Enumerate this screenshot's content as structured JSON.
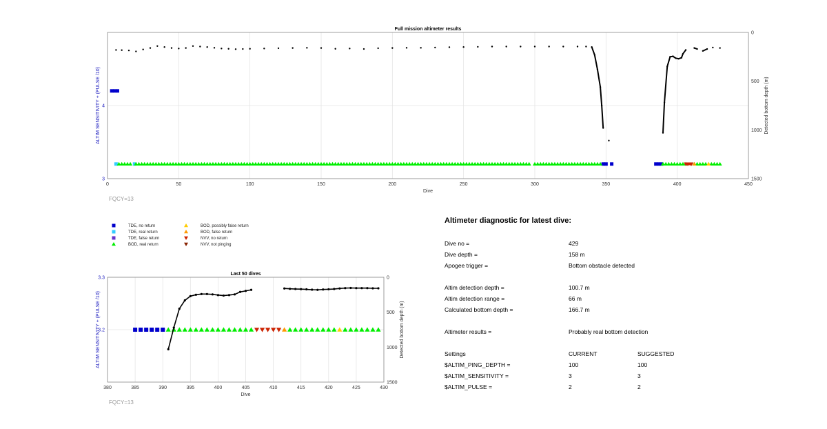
{
  "chart_data": [
    {
      "type": "scatter",
      "title": "Full mission altimeter results",
      "xlabel": "Dive",
      "ylabel_left": "ALTIM SENSITIVITY + (PULSE /10)",
      "ylabel_right": "Detected bottom depth (m)",
      "xlim": [
        0,
        450
      ],
      "ylim_left": [
        3,
        5
      ],
      "ylim_right": [
        0,
        1500
      ],
      "right_axis_reversed": true,
      "xticks": [
        0,
        50,
        100,
        150,
        200,
        250,
        300,
        350,
        400,
        450
      ],
      "yticks_left": [
        3,
        4
      ],
      "yticks_right": [
        0,
        500,
        1000,
        1500
      ],
      "grid": true,
      "footnote": "FQCY=13",
      "depth_series": {
        "name": "Detected bottom depth",
        "color": "#000000",
        "points": [
          [
            6,
            180
          ],
          [
            10,
            182
          ],
          [
            15,
            185
          ],
          [
            20,
            195
          ],
          [
            25,
            175
          ],
          [
            30,
            160
          ],
          [
            35,
            140
          ],
          [
            40,
            150
          ],
          [
            45,
            160
          ],
          [
            50,
            165
          ],
          [
            55,
            160
          ],
          [
            60,
            140
          ],
          [
            65,
            145
          ],
          [
            70,
            150
          ],
          [
            75,
            158
          ],
          [
            80,
            165
          ],
          [
            85,
            168
          ],
          [
            90,
            172
          ],
          [
            95,
            170
          ],
          [
            100,
            168
          ],
          [
            110,
            165
          ],
          [
            120,
            162
          ],
          [
            130,
            160
          ],
          [
            140,
            158
          ],
          [
            150,
            160
          ],
          [
            160,
            168
          ],
          [
            170,
            165
          ],
          [
            180,
            170
          ],
          [
            190,
            162
          ],
          [
            200,
            160
          ],
          [
            210,
            158
          ],
          [
            220,
            158
          ],
          [
            230,
            155
          ],
          [
            240,
            152
          ],
          [
            250,
            150
          ],
          [
            260,
            148
          ],
          [
            270,
            145
          ],
          [
            280,
            145
          ],
          [
            290,
            145
          ],
          [
            300,
            145
          ],
          [
            310,
            145
          ],
          [
            320,
            145
          ],
          [
            330,
            145
          ],
          [
            336,
            145
          ],
          [
            340,
            150
          ],
          [
            342,
            230
          ],
          [
            344,
            380
          ],
          [
            346,
            560
          ],
          [
            347,
            750
          ],
          [
            348,
            980
          ],
          [
            352,
            1110
          ],
          [
            390,
            1030
          ],
          [
            391,
            720
          ],
          [
            393,
            350
          ],
          [
            395,
            250
          ],
          [
            397,
            245
          ],
          [
            399,
            265
          ],
          [
            401,
            270
          ],
          [
            403,
            260
          ],
          [
            404,
            220
          ],
          [
            406,
            180
          ],
          [
            412,
            160
          ],
          [
            414,
            170
          ],
          [
            418,
            190
          ],
          [
            421,
            170
          ],
          [
            425,
            155
          ],
          [
            430,
            160
          ]
        ]
      },
      "marker_series": [
        {
          "name": "TDE, no return",
          "marker": "square",
          "color": "#0000cc",
          "points": [
            [
              3,
              4.2
            ],
            [
              5,
              4.2
            ],
            [
              7,
              4.2
            ],
            [
              348,
              3.2
            ],
            [
              350,
              3.2
            ],
            [
              354,
              3.2
            ],
            [
              385,
              3.2
            ],
            [
              387,
              3.2
            ],
            [
              389,
              3.2
            ]
          ]
        },
        {
          "name": "TDE, real return",
          "marker": "square",
          "color": "#33ccff",
          "points": [
            [
              6,
              3.2
            ],
            [
              19,
              3.2
            ]
          ]
        },
        {
          "name": "BOD, real return",
          "marker": "triangle-up",
          "color": "#00ee00",
          "range": [
            8,
            346
          ],
          "gaps": [
            [
              17,
              20
            ],
            [
              296,
              299
            ]
          ]
        },
        {
          "name": "BOD, real return (late)",
          "marker": "triangle-up",
          "color": "#00ee00",
          "range": [
            390,
            430
          ],
          "gaps": [
            [
              406,
              411
            ]
          ]
        },
        {
          "name": "NVV, no return",
          "marker": "triangle-down",
          "color": "#cc2200",
          "points": [
            [
              406,
              3.2
            ],
            [
              407,
              3.2
            ],
            [
              408,
              3.2
            ],
            [
              409,
              3.2
            ],
            [
              410,
              3.2
            ]
          ]
        },
        {
          "name": "BOD, possibly false return",
          "marker": "triangle-up",
          "color": "#ffcc00",
          "points": [
            [
              422,
              3.2
            ]
          ]
        },
        {
          "name": "BOD, false return",
          "marker": "triangle-up",
          "color": "#ff9900",
          "points": [
            [
              412,
              3.2
            ]
          ]
        }
      ]
    },
    {
      "type": "scatter",
      "title": "Last 50 dives",
      "xlabel": "Dive",
      "ylabel_left": "ALTIM SENSITIVITY + (PULSE /10)",
      "ylabel_right": "Detected bottom depth (m)",
      "xlim": [
        380,
        430
      ],
      "ylim_left": [
        3.1,
        3.3
      ],
      "ylim_right": [
        0,
        1500
      ],
      "right_axis_reversed": true,
      "xticks": [
        380,
        385,
        390,
        395,
        400,
        405,
        410,
        415,
        420,
        425,
        430
      ],
      "yticks_left": [
        3.2,
        3.3
      ],
      "yticks_right": [
        0,
        500,
        1000,
        1500
      ],
      "grid": true,
      "footnote": "FQCY=13",
      "depth_series": {
        "name": "Detected bottom depth",
        "color": "#000000",
        "points": [
          [
            391,
            1030
          ],
          [
            392,
            720
          ],
          [
            393,
            450
          ],
          [
            394,
            330
          ],
          [
            395,
            270
          ],
          [
            396,
            250
          ],
          [
            397,
            240
          ],
          [
            398,
            240
          ],
          [
            399,
            245
          ],
          [
            400,
            255
          ],
          [
            401,
            262
          ],
          [
            402,
            255
          ],
          [
            403,
            245
          ],
          [
            404,
            210
          ],
          [
            405,
            195
          ],
          [
            406,
            180
          ],
          [
            412,
            160
          ],
          [
            413,
            165
          ],
          [
            414,
            168
          ],
          [
            415,
            170
          ],
          [
            416,
            173
          ],
          [
            417,
            178
          ],
          [
            418,
            180
          ],
          [
            419,
            175
          ],
          [
            420,
            172
          ],
          [
            421,
            168
          ],
          [
            422,
            160
          ],
          [
            423,
            155
          ],
          [
            424,
            153
          ],
          [
            425,
            155
          ],
          [
            426,
            155
          ],
          [
            427,
            155
          ],
          [
            428,
            158
          ],
          [
            429,
            158
          ]
        ]
      },
      "marker_series": [
        {
          "name": "TDE, no return",
          "marker": "square",
          "color": "#0000cc",
          "points": [
            [
              385,
              3.2
            ],
            [
              386,
              3.2
            ],
            [
              387,
              3.2
            ],
            [
              388,
              3.2
            ],
            [
              389,
              3.2
            ],
            [
              390,
              3.2
            ]
          ]
        },
        {
          "name": "BOD, real return",
          "marker": "triangle-up",
          "color": "#00ee00",
          "points": [
            [
              391,
              3.2
            ],
            [
              392,
              3.2
            ],
            [
              393,
              3.2
            ],
            [
              394,
              3.2
            ],
            [
              395,
              3.2
            ],
            [
              396,
              3.2
            ],
            [
              397,
              3.2
            ],
            [
              398,
              3.2
            ],
            [
              399,
              3.2
            ],
            [
              400,
              3.2
            ],
            [
              401,
              3.2
            ],
            [
              402,
              3.2
            ],
            [
              403,
              3.2
            ],
            [
              404,
              3.2
            ],
            [
              405,
              3.2
            ],
            [
              406,
              3.2
            ],
            [
              413,
              3.2
            ],
            [
              414,
              3.2
            ],
            [
              415,
              3.2
            ],
            [
              416,
              3.2
            ],
            [
              417,
              3.2
            ],
            [
              418,
              3.2
            ],
            [
              419,
              3.2
            ],
            [
              420,
              3.2
            ],
            [
              421,
              3.2
            ],
            [
              423,
              3.2
            ],
            [
              424,
              3.2
            ],
            [
              425,
              3.2
            ],
            [
              426,
              3.2
            ],
            [
              427,
              3.2
            ],
            [
              428,
              3.2
            ],
            [
              429,
              3.2
            ]
          ]
        },
        {
          "name": "NVV, no return",
          "marker": "triangle-down",
          "color": "#cc2200",
          "points": [
            [
              407,
              3.2
            ],
            [
              408,
              3.2
            ],
            [
              409,
              3.2
            ],
            [
              410,
              3.2
            ],
            [
              411,
              3.2
            ]
          ]
        },
        {
          "name": "BOD, false return",
          "marker": "triangle-up",
          "color": "#ff9900",
          "points": [
            [
              412,
              3.2
            ]
          ]
        },
        {
          "name": "BOD, possibly false return",
          "marker": "triangle-up",
          "color": "#ffcc00",
          "points": [
            [
              422,
              3.2
            ]
          ]
        }
      ]
    }
  ],
  "legend": [
    {
      "label": "TDE, no return",
      "marker": "square",
      "color": "#0000cc"
    },
    {
      "label": "TDE, real return",
      "marker": "square",
      "color": "#33ccff"
    },
    {
      "label": "TDE, false return",
      "marker": "square",
      "color": "#6633cc"
    },
    {
      "label": "BOD, real return",
      "marker": "triangle-up",
      "color": "#00ee00"
    },
    {
      "label": "BOD, possibly false return",
      "marker": "triangle-up",
      "color": "#ffcc00"
    },
    {
      "label": "BOD, false return",
      "marker": "triangle-up",
      "color": "#ff9900"
    },
    {
      "label": "NVV, no return",
      "marker": "triangle-down",
      "color": "#cc2200"
    },
    {
      "label": "NVV, not pinging",
      "marker": "triangle-down",
      "color": "#882200"
    }
  ],
  "diagnostic": {
    "heading": "Altimeter diagnostic for latest dive:",
    "dive_no_label": "Dive no =",
    "dive_no": "429",
    "dive_depth_label": "Dive depth =",
    "dive_depth": "158 m",
    "apogee_label": "Apogee trigger =",
    "apogee": "Bottom obstacle detected",
    "det_depth_label": "Altim detection depth =",
    "det_depth": "100.7 m",
    "det_range_label": "Altim detection range =",
    "det_range": "66 m",
    "calc_bottom_label": "Calculated bottom depth =",
    "calc_bottom": "166.7 m",
    "results_label": "Altimeter results =",
    "results": "Probably real bottom detection",
    "settings_label": "Settings",
    "current_label": "CURRENT",
    "suggested_label": "SUGGESTED",
    "ping_depth_label": "$ALTIM_PING_DEPTH =",
    "ping_depth_current": "100",
    "ping_depth_suggested": "100",
    "sensitivity_label": "$ALTIM_SENSITIVITY =",
    "sensitivity_current": "3",
    "sensitivity_suggested": "3",
    "pulse_label": "$ALTIM_PULSE =",
    "pulse_current": "2",
    "pulse_suggested": "2"
  }
}
